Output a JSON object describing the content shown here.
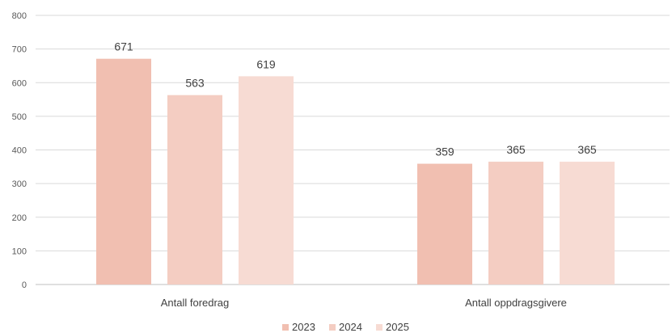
{
  "chart_data": {
    "type": "bar",
    "title": "",
    "xlabel": "",
    "ylabel": "",
    "ylim": [
      0,
      800
    ],
    "ytick_step": 100,
    "grid": true,
    "legend_position": "bottom",
    "categories": [
      "Antall foredrag",
      "Antall oppdragsgivere"
    ],
    "series": [
      {
        "name": "2023",
        "color": "#f1bfb1",
        "values": [
          671,
          359
        ]
      },
      {
        "name": "2024",
        "color": "#f4cdc2",
        "values": [
          563,
          365
        ]
      },
      {
        "name": "2025",
        "color": "#f7dbd3",
        "values": [
          619,
          365
        ]
      }
    ]
  }
}
